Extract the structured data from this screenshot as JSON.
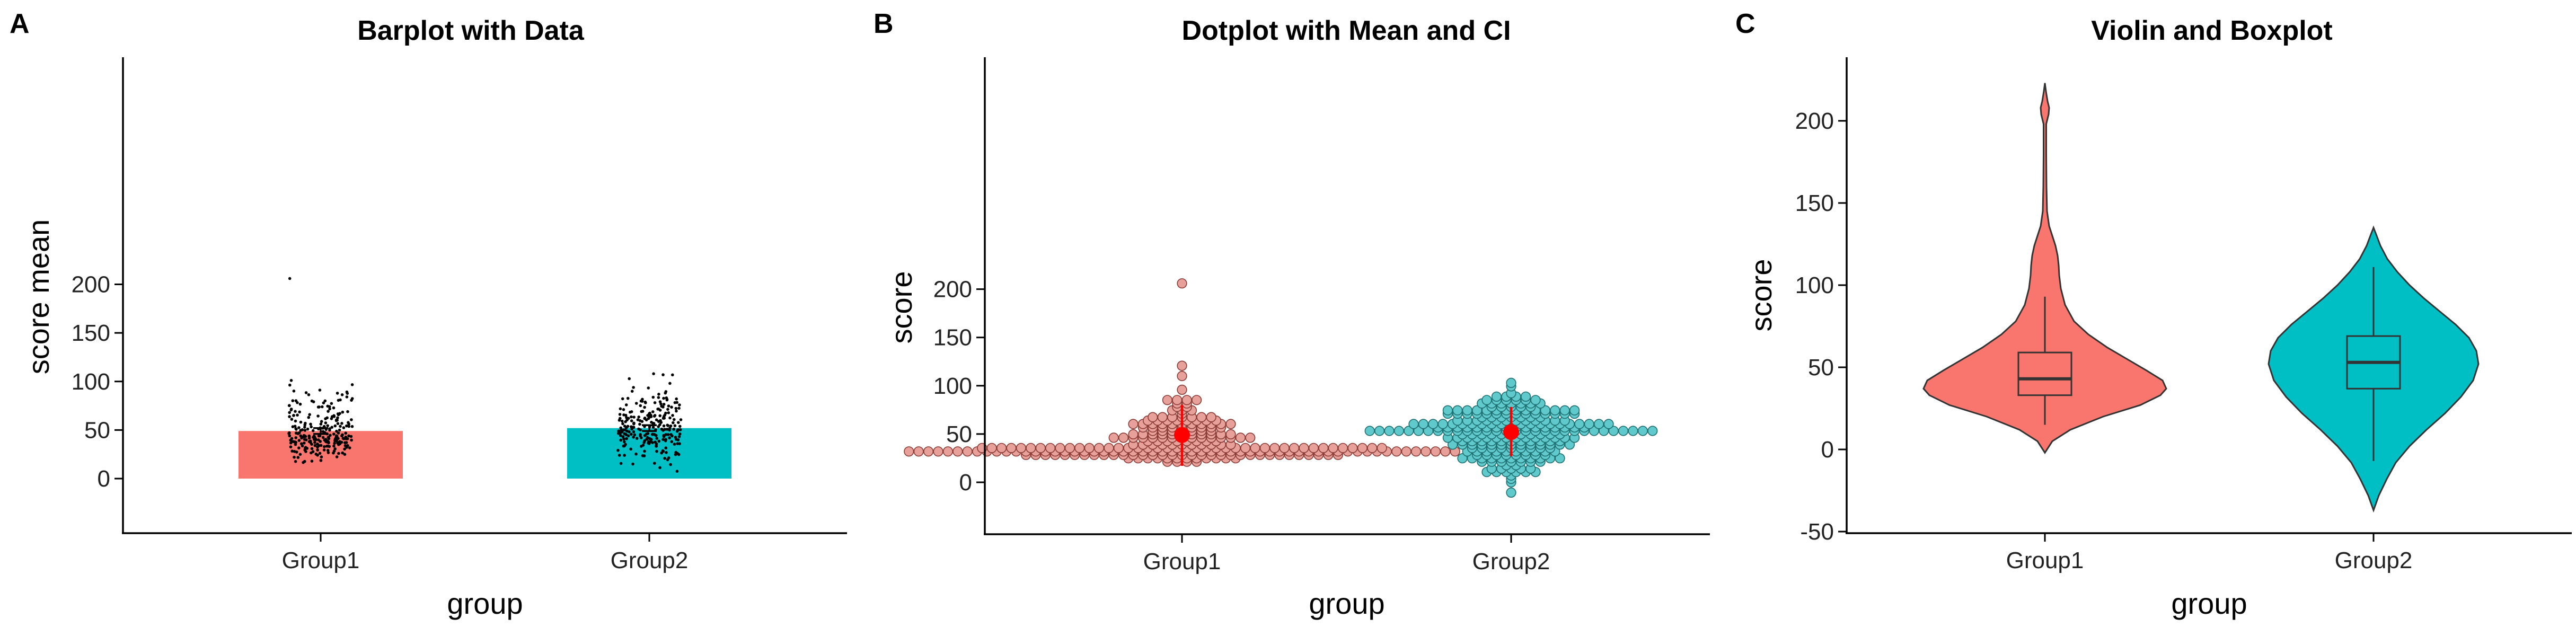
{
  "colors": {
    "group1_fill": "#F8766D",
    "group2_fill": "#00BFC4",
    "dot_group1": "#E8A09A",
    "dot_group2": "#5FC9CC",
    "mean_ci": "#FF0000",
    "jitter_point": "#000000"
  },
  "chart_data": [
    {
      "panel": "A",
      "type": "bar",
      "title": "Barplot with Data",
      "xlabel": "group",
      "ylabel": "score mean",
      "categories": [
        "Group1",
        "Group2"
      ],
      "values": [
        49,
        52
      ],
      "error_bars": [
        [
          46,
          52
        ],
        [
          49,
          55
        ]
      ],
      "jitter_points": {
        "Group1": {
          "n": 250,
          "center": 45,
          "min": 15,
          "max": 127,
          "outliers": [
            206
          ]
        },
        "Group2": {
          "n": 250,
          "center": 52,
          "min": -17,
          "max": 113,
          "outliers": []
        }
      },
      "ylim": [
        -27,
        218
      ],
      "yticks": [
        0,
        50,
        100,
        150,
        200
      ],
      "grid": false,
      "legend": "none"
    },
    {
      "panel": "B",
      "type": "scatter",
      "subtype": "dotplot",
      "title": "Dotplot with Mean and CI",
      "xlabel": "group",
      "ylabel": "score",
      "categories": [
        "Group1",
        "Group2"
      ],
      "means": [
        49,
        52
      ],
      "ci": [
        [
          17,
          80
        ],
        [
          27,
          78
        ]
      ],
      "points": {
        "Group1": {
          "n": 250,
          "mode": 35,
          "min": 17,
          "max": 127,
          "outliers": [
            206
          ]
        },
        "Group2": {
          "n": 250,
          "mode": 52,
          "min": -14,
          "max": 114,
          "outliers": []
        }
      },
      "ylim": [
        -27,
        220
      ],
      "yticks": [
        0,
        50,
        100,
        150,
        200
      ],
      "grid": false,
      "legend": "none"
    },
    {
      "panel": "C",
      "type": "violin",
      "title": "Violin and Boxplot",
      "xlabel": "group",
      "ylabel": "score",
      "categories": [
        "Group1",
        "Group2"
      ],
      "boxplot": [
        {
          "lower_whisker": 15,
          "q1": 33,
          "median": 43,
          "q3": 59,
          "upper_whisker": 93
        },
        {
          "lower_whisker": -7,
          "q1": 37,
          "median": 53,
          "q3": 69,
          "upper_whisker": 111
        }
      ],
      "violin_range": [
        [
          -2,
          223
        ],
        [
          -37,
          135
        ]
      ],
      "ylim": [
        -50,
        238
      ],
      "yticks": [
        -50,
        0,
        50,
        100,
        150,
        200
      ],
      "grid": false,
      "legend": "none"
    }
  ]
}
